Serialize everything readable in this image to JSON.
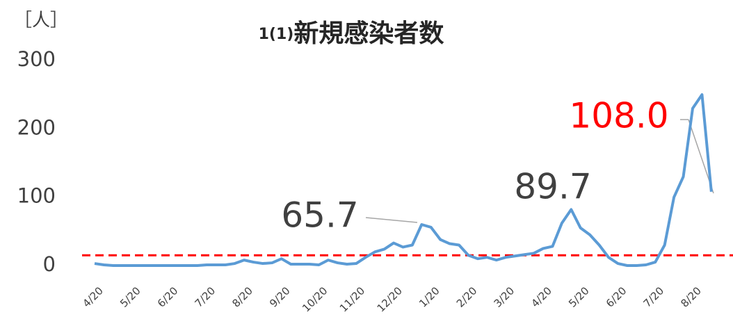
{
  "chart_data": {
    "type": "line",
    "title_number": "1(1)",
    "title": "新規感染者数",
    "y_unit": "［人］",
    "categories": [
      "4/20",
      null,
      null,
      null,
      "5/20",
      null,
      null,
      null,
      "6/20",
      null,
      null,
      null,
      "7/20",
      null,
      null,
      null,
      "8/20",
      null,
      null,
      null,
      "9/20",
      null,
      null,
      null,
      "10/20",
      null,
      null,
      null,
      "11/20",
      null,
      null,
      null,
      "12/20",
      null,
      null,
      null,
      "1/20",
      null,
      null,
      null,
      "2/20",
      null,
      null,
      null,
      "3/20",
      null,
      null,
      null,
      "4/20",
      null,
      null,
      null,
      "5/20",
      null,
      null,
      null,
      "6/20",
      null,
      null,
      null,
      "7/20",
      null,
      null,
      null,
      "8/20",
      null,
      null
    ],
    "values": [
      3,
      1,
      0,
      0,
      0,
      0,
      0,
      0,
      0,
      0,
      0,
      0,
      1,
      1,
      1,
      3,
      8,
      5,
      3,
      4,
      10,
      2,
      2,
      2,
      1,
      8,
      4,
      2,
      3,
      12,
      20,
      24,
      33,
      27,
      30,
      60,
      56,
      38,
      32,
      30,
      15,
      10,
      12,
      8,
      12,
      14,
      16,
      18,
      25,
      28,
      62,
      82,
      55,
      45,
      30,
      12,
      3,
      0,
      0,
      1,
      5,
      30,
      100,
      130,
      230,
      250,
      108
    ],
    "color": "#5b9bd5",
    "threshold": 15,
    "threshold_color": "#ff0000",
    "ylim": [
      0,
      300
    ],
    "yticks": [
      0,
      100,
      200,
      300
    ],
    "annotations": [
      "65.7",
      "89.7",
      "108.0"
    ]
  }
}
